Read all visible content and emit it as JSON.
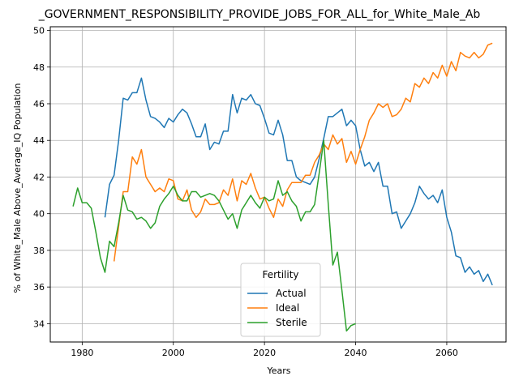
{
  "chart_data": {
    "type": "line",
    "title": "_GOVERNMENT_RESPONSIBILITY_PROVIDE_JOBS_FOR_ALL_for_White_Male_Ab",
    "xlabel": "Years",
    "ylabel": "% of White_Male Above_Average_IQ Population",
    "xlim": [
      1973,
      2073
    ],
    "ylim": [
      33,
      50.2
    ],
    "xticks": [
      1980,
      2000,
      2020,
      2040,
      2060
    ],
    "yticks": [
      34,
      36,
      38,
      40,
      42,
      44,
      46,
      48,
      50
    ],
    "grid": true,
    "legend": {
      "title": "Fertility",
      "placement": "lower-center"
    },
    "series": [
      {
        "name": "Actual",
        "color": "#1f77b4",
        "points": [
          [
            1985,
            39.8
          ],
          [
            1986,
            41.6
          ],
          [
            1987,
            42.1
          ],
          [
            1988,
            44.0
          ],
          [
            1989,
            46.3
          ],
          [
            1990,
            46.2
          ],
          [
            1991,
            46.6
          ],
          [
            1992,
            46.6
          ],
          [
            1993,
            47.4
          ],
          [
            1994,
            46.2
          ],
          [
            1995,
            45.3
          ],
          [
            1996,
            45.2
          ],
          [
            1997,
            45.0
          ],
          [
            1998,
            44.7
          ],
          [
            1999,
            45.2
          ],
          [
            2000,
            45.0
          ],
          [
            2001,
            45.4
          ],
          [
            2002,
            45.7
          ],
          [
            2003,
            45.5
          ],
          [
            2004,
            44.9
          ],
          [
            2005,
            44.2
          ],
          [
            2006,
            44.2
          ],
          [
            2007,
            44.9
          ],
          [
            2008,
            43.5
          ],
          [
            2009,
            43.9
          ],
          [
            2010,
            43.8
          ],
          [
            2011,
            44.5
          ],
          [
            2012,
            44.5
          ],
          [
            2013,
            46.5
          ],
          [
            2014,
            45.5
          ],
          [
            2015,
            46.3
          ],
          [
            2016,
            46.2
          ],
          [
            2017,
            46.5
          ],
          [
            2018,
            46.0
          ],
          [
            2019,
            45.9
          ],
          [
            2020,
            45.2
          ],
          [
            2021,
            44.4
          ],
          [
            2022,
            44.3
          ],
          [
            2023,
            45.1
          ],
          [
            2024,
            44.3
          ],
          [
            2025,
            42.9
          ],
          [
            2026,
            42.9
          ],
          [
            2027,
            42.0
          ],
          [
            2028,
            41.8
          ],
          [
            2029,
            41.7
          ],
          [
            2030,
            41.6
          ],
          [
            2031,
            42.0
          ],
          [
            2032,
            43.0
          ],
          [
            2033,
            44.1
          ],
          [
            2034,
            45.3
          ],
          [
            2035,
            45.3
          ],
          [
            2036,
            45.5
          ],
          [
            2037,
            45.7
          ],
          [
            2038,
            44.8
          ],
          [
            2039,
            45.1
          ],
          [
            2040,
            44.8
          ],
          [
            2041,
            43.5
          ],
          [
            2042,
            42.6
          ],
          [
            2043,
            42.8
          ],
          [
            2044,
            42.3
          ],
          [
            2045,
            42.8
          ],
          [
            2046,
            41.5
          ],
          [
            2047,
            41.5
          ],
          [
            2048,
            40.0
          ],
          [
            2049,
            40.1
          ],
          [
            2050,
            39.2
          ],
          [
            2051,
            39.6
          ],
          [
            2052,
            40.0
          ],
          [
            2053,
            40.6
          ],
          [
            2054,
            41.5
          ],
          [
            2055,
            41.1
          ],
          [
            2056,
            40.8
          ],
          [
            2057,
            41.0
          ],
          [
            2058,
            40.6
          ],
          [
            2059,
            41.3
          ],
          [
            2060,
            39.8
          ],
          [
            2061,
            39.0
          ],
          [
            2062,
            37.7
          ],
          [
            2063,
            37.6
          ],
          [
            2064,
            36.8
          ],
          [
            2065,
            37.1
          ],
          [
            2066,
            36.7
          ],
          [
            2067,
            36.9
          ],
          [
            2068,
            36.3
          ],
          [
            2069,
            36.7
          ],
          [
            2070,
            36.1
          ]
        ]
      },
      {
        "name": "Ideal",
        "color": "#ff7f0e",
        "points": [
          [
            1987,
            37.4
          ],
          [
            1988,
            39.3
          ],
          [
            1989,
            41.2
          ],
          [
            1990,
            41.2
          ],
          [
            1991,
            43.1
          ],
          [
            1992,
            42.7
          ],
          [
            1993,
            43.5
          ],
          [
            1994,
            42.0
          ],
          [
            1995,
            41.6
          ],
          [
            1996,
            41.2
          ],
          [
            1997,
            41.4
          ],
          [
            1998,
            41.2
          ],
          [
            1999,
            41.9
          ],
          [
            2000,
            41.8
          ],
          [
            2001,
            40.8
          ],
          [
            2002,
            40.7
          ],
          [
            2003,
            41.3
          ],
          [
            2004,
            40.2
          ],
          [
            2005,
            39.8
          ],
          [
            2006,
            40.1
          ],
          [
            2007,
            40.8
          ],
          [
            2008,
            40.5
          ],
          [
            2009,
            40.5
          ],
          [
            2010,
            40.6
          ],
          [
            2011,
            41.3
          ],
          [
            2012,
            41.0
          ],
          [
            2013,
            41.9
          ],
          [
            2014,
            40.7
          ],
          [
            2015,
            41.8
          ],
          [
            2016,
            41.6
          ],
          [
            2017,
            42.2
          ],
          [
            2018,
            41.4
          ],
          [
            2019,
            40.8
          ],
          [
            2020,
            40.9
          ],
          [
            2021,
            40.3
          ],
          [
            2022,
            39.8
          ],
          [
            2023,
            40.8
          ],
          [
            2024,
            40.4
          ],
          [
            2025,
            41.3
          ],
          [
            2026,
            41.7
          ],
          [
            2027,
            41.7
          ],
          [
            2028,
            41.7
          ],
          [
            2029,
            42.1
          ],
          [
            2030,
            42.1
          ],
          [
            2031,
            42.8
          ],
          [
            2032,
            43.2
          ],
          [
            2033,
            43.8
          ],
          [
            2034,
            43.5
          ],
          [
            2035,
            44.3
          ],
          [
            2036,
            43.8
          ],
          [
            2037,
            44.1
          ],
          [
            2038,
            42.8
          ],
          [
            2039,
            43.4
          ],
          [
            2040,
            42.7
          ],
          [
            2041,
            43.5
          ],
          [
            2042,
            44.2
          ],
          [
            2043,
            45.1
          ],
          [
            2044,
            45.5
          ],
          [
            2045,
            46.0
          ],
          [
            2046,
            45.8
          ],
          [
            2047,
            46.0
          ],
          [
            2048,
            45.3
          ],
          [
            2049,
            45.4
          ],
          [
            2050,
            45.7
          ],
          [
            2051,
            46.3
          ],
          [
            2052,
            46.1
          ],
          [
            2053,
            47.1
          ],
          [
            2054,
            46.9
          ],
          [
            2055,
            47.4
          ],
          [
            2056,
            47.1
          ],
          [
            2057,
            47.7
          ],
          [
            2058,
            47.4
          ],
          [
            2059,
            48.1
          ],
          [
            2060,
            47.5
          ],
          [
            2061,
            48.3
          ],
          [
            2062,
            47.8
          ],
          [
            2063,
            48.8
          ],
          [
            2064,
            48.6
          ],
          [
            2065,
            48.5
          ],
          [
            2066,
            48.8
          ],
          [
            2067,
            48.5
          ],
          [
            2068,
            48.7
          ],
          [
            2069,
            49.2
          ],
          [
            2070,
            49.3
          ]
        ]
      },
      {
        "name": "Sterile",
        "color": "#2ca02c",
        "points": [
          [
            1978,
            40.4
          ],
          [
            1979,
            41.4
          ],
          [
            1980,
            40.6
          ],
          [
            1981,
            40.6
          ],
          [
            1982,
            40.3
          ],
          [
            1983,
            39.0
          ],
          [
            1984,
            37.6
          ],
          [
            1985,
            36.8
          ],
          [
            1986,
            38.5
          ],
          [
            1987,
            38.2
          ],
          [
            1988,
            39.5
          ],
          [
            1989,
            41.0
          ],
          [
            1990,
            40.2
          ],
          [
            1991,
            40.1
          ],
          [
            1992,
            39.7
          ],
          [
            1993,
            39.8
          ],
          [
            1994,
            39.6
          ],
          [
            1995,
            39.2
          ],
          [
            1996,
            39.5
          ],
          [
            1997,
            40.4
          ],
          [
            1998,
            40.8
          ],
          [
            1999,
            41.1
          ],
          [
            2000,
            41.5
          ],
          [
            2001,
            41.0
          ],
          [
            2002,
            40.7
          ],
          [
            2003,
            40.7
          ],
          [
            2004,
            41.2
          ],
          [
            2005,
            41.2
          ],
          [
            2006,
            40.9
          ],
          [
            2007,
            41.0
          ],
          [
            2008,
            41.1
          ],
          [
            2009,
            41.0
          ],
          [
            2010,
            40.7
          ],
          [
            2011,
            40.2
          ],
          [
            2012,
            39.7
          ],
          [
            2013,
            40.0
          ],
          [
            2014,
            39.2
          ],
          [
            2015,
            40.2
          ],
          [
            2016,
            40.6
          ],
          [
            2017,
            41.0
          ],
          [
            2018,
            40.6
          ],
          [
            2019,
            40.3
          ],
          [
            2020,
            40.9
          ],
          [
            2021,
            40.7
          ],
          [
            2022,
            40.8
          ],
          [
            2023,
            41.8
          ],
          [
            2024,
            41.0
          ],
          [
            2025,
            41.2
          ],
          [
            2026,
            40.7
          ],
          [
            2027,
            40.4
          ],
          [
            2028,
            39.6
          ],
          [
            2029,
            40.1
          ],
          [
            2030,
            40.1
          ],
          [
            2031,
            40.5
          ],
          [
            2032,
            42.2
          ],
          [
            2033,
            44.0
          ],
          [
            2034,
            40.5
          ],
          [
            2035,
            37.2
          ],
          [
            2036,
            37.9
          ],
          [
            2037,
            35.8
          ],
          [
            2038,
            33.6
          ],
          [
            2039,
            33.9
          ],
          [
            2040,
            34.0
          ]
        ]
      }
    ]
  }
}
